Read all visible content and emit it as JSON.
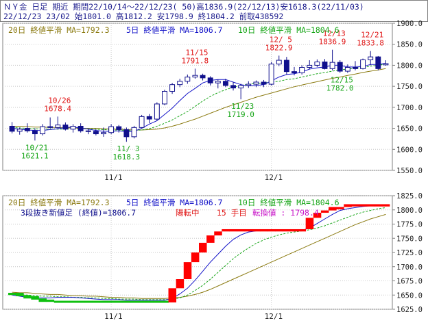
{
  "header": {
    "line1": "ＮＹ金 日足 期近 期間22/10/14～22/12/23( 50)高1836.9(22/12/13)安1618.3(22/11/03)",
    "line2": "22/12/23 23/02 始1801.0 高1812.2 安1798.9 終1804.2 前取438592"
  },
  "colors": {
    "ma20": "#8b7a10",
    "ma5": "#1414c8",
    "ma10": "#16a516",
    "candle_up": "#ffffff",
    "candle_down": "#10108c",
    "annot_high": "#e01414",
    "annot_low": "#16a516",
    "renko_up": "#ff0000",
    "renko_down": "#10c010",
    "grid": "#c8c8c8"
  },
  "chart_data": [
    {
      "type": "candlestick",
      "legend": [
        "20日 終値平滑 MA=1792.3",
        "5日 終値平滑 MA=1806.7",
        "10日 終値平滑 MA=1804.6"
      ],
      "ylim": [
        1550,
        1900
      ],
      "yticks": [
        "1900.0",
        "1850.0",
        "1800.0",
        "1750.0",
        "1700.0",
        "1650.0",
        "1600.0",
        "1550.0"
      ],
      "ytick_values": [
        1900,
        1850,
        1800,
        1750,
        1700,
        1650,
        1600,
        1550
      ],
      "xtick_labels": [
        {
          "label": "11/1",
          "index": 13
        },
        {
          "label": "12/1",
          "index": 34
        }
      ],
      "candles": [
        {
          "o": 1655,
          "h": 1665,
          "l": 1638,
          "c": 1643
        },
        {
          "o": 1643,
          "h": 1652,
          "l": 1635,
          "c": 1648
        },
        {
          "o": 1650,
          "h": 1662,
          "l": 1640,
          "c": 1644
        },
        {
          "o": 1644,
          "h": 1650,
          "l": 1621,
          "c": 1637
        },
        {
          "o": 1637,
          "h": 1660,
          "l": 1633,
          "c": 1654
        },
        {
          "o": 1654,
          "h": 1676,
          "l": 1650,
          "c": 1652
        },
        {
          "o": 1652,
          "h": 1678,
          "l": 1648,
          "c": 1658
        },
        {
          "o": 1658,
          "h": 1664,
          "l": 1645,
          "c": 1648
        },
        {
          "o": 1648,
          "h": 1660,
          "l": 1640,
          "c": 1655
        },
        {
          "o": 1655,
          "h": 1662,
          "l": 1640,
          "c": 1644
        },
        {
          "o": 1644,
          "h": 1650,
          "l": 1636,
          "c": 1643
        },
        {
          "o": 1643,
          "h": 1648,
          "l": 1633,
          "c": 1637
        },
        {
          "o": 1637,
          "h": 1652,
          "l": 1630,
          "c": 1640
        },
        {
          "o": 1640,
          "h": 1660,
          "l": 1636,
          "c": 1654
        },
        {
          "o": 1654,
          "h": 1658,
          "l": 1640,
          "c": 1647
        },
        {
          "o": 1647,
          "h": 1652,
          "l": 1618,
          "c": 1630
        },
        {
          "o": 1630,
          "h": 1656,
          "l": 1626,
          "c": 1652
        },
        {
          "o": 1652,
          "h": 1682,
          "l": 1650,
          "c": 1678
        },
        {
          "o": 1678,
          "h": 1684,
          "l": 1662,
          "c": 1672
        },
        {
          "o": 1672,
          "h": 1712,
          "l": 1668,
          "c": 1708
        },
        {
          "o": 1708,
          "h": 1742,
          "l": 1705,
          "c": 1738
        },
        {
          "o": 1738,
          "h": 1758,
          "l": 1732,
          "c": 1754
        },
        {
          "o": 1754,
          "h": 1768,
          "l": 1748,
          "c": 1762
        },
        {
          "o": 1762,
          "h": 1778,
          "l": 1756,
          "c": 1772
        },
        {
          "o": 1772,
          "h": 1792,
          "l": 1768,
          "c": 1776
        },
        {
          "o": 1776,
          "h": 1780,
          "l": 1764,
          "c": 1770
        },
        {
          "o": 1770,
          "h": 1774,
          "l": 1752,
          "c": 1758
        },
        {
          "o": 1758,
          "h": 1766,
          "l": 1745,
          "c": 1762
        },
        {
          "o": 1762,
          "h": 1768,
          "l": 1748,
          "c": 1752
        },
        {
          "o": 1752,
          "h": 1760,
          "l": 1740,
          "c": 1746
        },
        {
          "o": 1746,
          "h": 1756,
          "l": 1719,
          "c": 1752
        },
        {
          "o": 1752,
          "h": 1762,
          "l": 1746,
          "c": 1755
        },
        {
          "o": 1755,
          "h": 1764,
          "l": 1748,
          "c": 1760
        },
        {
          "o": 1760,
          "h": 1765,
          "l": 1748,
          "c": 1755
        },
        {
          "o": 1755,
          "h": 1808,
          "l": 1752,
          "c": 1803
        },
        {
          "o": 1803,
          "h": 1823,
          "l": 1798,
          "c": 1812
        },
        {
          "o": 1812,
          "h": 1820,
          "l": 1778,
          "c": 1785
        },
        {
          "o": 1785,
          "h": 1796,
          "l": 1776,
          "c": 1782
        },
        {
          "o": 1782,
          "h": 1800,
          "l": 1778,
          "c": 1795
        },
        {
          "o": 1795,
          "h": 1812,
          "l": 1790,
          "c": 1800
        },
        {
          "o": 1800,
          "h": 1814,
          "l": 1796,
          "c": 1808
        },
        {
          "o": 1808,
          "h": 1815,
          "l": 1790,
          "c": 1792
        },
        {
          "o": 1792,
          "h": 1837,
          "l": 1788,
          "c": 1807
        },
        {
          "o": 1807,
          "h": 1812,
          "l": 1782,
          "c": 1786
        },
        {
          "o": 1786,
          "h": 1802,
          "l": 1782,
          "c": 1795
        },
        {
          "o": 1795,
          "h": 1810,
          "l": 1788,
          "c": 1792
        },
        {
          "o": 1792,
          "h": 1816,
          "l": 1790,
          "c": 1813
        },
        {
          "o": 1813,
          "h": 1834,
          "l": 1800,
          "c": 1820
        },
        {
          "o": 1820,
          "h": 1822,
          "l": 1788,
          "c": 1792
        },
        {
          "o": 1801,
          "h": 1812,
          "l": 1799,
          "c": 1804
        }
      ],
      "ma5": [
        1650,
        1648,
        1646,
        1645,
        1645,
        1647,
        1649,
        1652,
        1653,
        1651,
        1648,
        1645,
        1643,
        1643,
        1644,
        1642,
        1643,
        1650,
        1660,
        1668,
        1683,
        1698,
        1716,
        1733,
        1745,
        1758,
        1764,
        1766,
        1766,
        1760,
        1754,
        1751,
        1752,
        1754,
        1763,
        1772,
        1778,
        1780,
        1784,
        1791,
        1794,
        1796,
        1800,
        1800,
        1796,
        1796,
        1797,
        1802,
        1802,
        1805
      ],
      "ma10": [
        1652,
        1651,
        1650,
        1649,
        1648,
        1648,
        1648,
        1648,
        1649,
        1649,
        1649,
        1648,
        1647,
        1646,
        1646,
        1645,
        1645,
        1646,
        1649,
        1655,
        1662,
        1670,
        1680,
        1690,
        1702,
        1715,
        1726,
        1735,
        1742,
        1748,
        1752,
        1755,
        1757,
        1758,
        1760,
        1762,
        1766,
        1768,
        1772,
        1776,
        1780,
        1783,
        1786,
        1789,
        1791,
        1793,
        1795,
        1798,
        1800,
        1803
      ],
      "ma20": [
        1655,
        1655,
        1654,
        1653,
        1653,
        1652,
        1652,
        1651,
        1651,
        1650,
        1650,
        1650,
        1649,
        1648,
        1648,
        1647,
        1646,
        1646,
        1647,
        1648,
        1651,
        1655,
        1660,
        1666,
        1672,
        1679,
        1686,
        1693,
        1700,
        1706,
        1712,
        1718,
        1724,
        1729,
        1734,
        1739,
        1744,
        1749,
        1753,
        1757,
        1761,
        1765,
        1769,
        1772,
        1776,
        1779,
        1783,
        1786,
        1789,
        1792
      ],
      "annotations": [
        {
          "type": "high",
          "date": "10/26",
          "value": "1678.4",
          "index": 6,
          "price": 1678
        },
        {
          "type": "low",
          "date": "10/21",
          "value": "1621.1",
          "index": 3,
          "price": 1621
        },
        {
          "type": "low",
          "date": "11/ 3",
          "value": "1618.3",
          "index": 15,
          "price": 1618
        },
        {
          "type": "high",
          "date": "11/15",
          "value": "1791.8",
          "index": 24,
          "price": 1792
        },
        {
          "type": "low",
          "date": "11/23",
          "value": "1719.0",
          "index": 30,
          "price": 1719
        },
        {
          "type": "high",
          "date": "12/ 5",
          "value": "1822.9",
          "index": 35,
          "price": 1823
        },
        {
          "type": "high",
          "date": "12/13",
          "value": "1836.9",
          "index": 42,
          "price": 1837
        },
        {
          "type": "low",
          "date": "12/15",
          "value": "1782.0",
          "index": 43,
          "price": 1782
        },
        {
          "type": "high",
          "date": "12/21",
          "value": "1833.8",
          "index": 47,
          "price": 1834
        }
      ]
    },
    {
      "type": "three-line-break",
      "legend": [
        "20日 終値平滑 MA=1792.3",
        "5日 終値平滑 MA=1806.7",
        "10日 終値平滑 MA=1804.6"
      ],
      "subtitle_parts": [
        "3段抜き新値足 (終値)=1806.7",
        "陽転中",
        "15 手目",
        "転換値 : 1798.4"
      ],
      "ylim": [
        1625,
        1825
      ],
      "yticks": [
        "1825.0",
        "1800.0",
        "1775.0",
        "1750.0",
        "1725.0",
        "1700.0",
        "1675.0",
        "1650.0",
        "1625.0"
      ],
      "ytick_values": [
        1825,
        1800,
        1775,
        1750,
        1725,
        1700,
        1675,
        1650,
        1625
      ],
      "xtick_labels": [
        {
          "label": "11/1",
          "index": 13
        },
        {
          "label": "12/1",
          "index": 34
        }
      ],
      "bricks": [
        {
          "from": 1654,
          "to": 1650,
          "dir": "down"
        },
        {
          "from": 1654,
          "to": 1648,
          "dir": "down"
        },
        {
          "from": 1650,
          "to": 1644,
          "dir": "down"
        },
        {
          "from": 1648,
          "to": 1642,
          "dir": "down"
        },
        {
          "from": 1644,
          "to": 1638,
          "dir": "down"
        },
        {
          "from": 1642,
          "to": 1638,
          "dir": "down"
        },
        {
          "from": 1640,
          "to": 1637,
          "dir": "down"
        },
        {
          "from": 1640,
          "to": 1637,
          "dir": "down"
        },
        {
          "from": 1640,
          "to": 1637,
          "dir": "down"
        },
        {
          "from": 1640,
          "to": 1637,
          "dir": "down"
        },
        {
          "from": 1640,
          "to": 1637,
          "dir": "down"
        },
        {
          "from": 1640,
          "to": 1637,
          "dir": "down"
        },
        {
          "from": 1640,
          "to": 1637,
          "dir": "down"
        },
        {
          "from": 1640,
          "to": 1637,
          "dir": "down"
        },
        {
          "from": 1640,
          "to": 1637,
          "dir": "down"
        },
        {
          "from": 1640,
          "to": 1637,
          "dir": "down"
        },
        {
          "from": 1640,
          "to": 1637,
          "dir": "down"
        },
        {
          "from": 1640,
          "to": 1637,
          "dir": "down"
        },
        {
          "from": 1640,
          "to": 1637,
          "dir": "down"
        },
        {
          "from": 1640,
          "to": 1637,
          "dir": "down"
        },
        {
          "from": 1640,
          "to": 1637,
          "dir": "down"
        },
        {
          "from": 1637,
          "to": 1662,
          "dir": "up"
        },
        {
          "from": 1662,
          "to": 1678,
          "dir": "up"
        },
        {
          "from": 1678,
          "to": 1708,
          "dir": "up"
        },
        {
          "from": 1708,
          "to": 1725,
          "dir": "up"
        },
        {
          "from": 1725,
          "to": 1742,
          "dir": "up"
        },
        {
          "from": 1742,
          "to": 1755,
          "dir": "up"
        },
        {
          "from": 1755,
          "to": 1762,
          "dir": "up"
        },
        {
          "from": 1762,
          "to": 1766,
          "dir": "up"
        },
        {
          "from": 1762,
          "to": 1766,
          "dir": "up"
        },
        {
          "from": 1762,
          "to": 1766,
          "dir": "up"
        },
        {
          "from": 1762,
          "to": 1766,
          "dir": "up"
        },
        {
          "from": 1762,
          "to": 1766,
          "dir": "up"
        },
        {
          "from": 1762,
          "to": 1766,
          "dir": "up"
        },
        {
          "from": 1762,
          "to": 1766,
          "dir": "up"
        },
        {
          "from": 1762,
          "to": 1766,
          "dir": "up"
        },
        {
          "from": 1762,
          "to": 1766,
          "dir": "up"
        },
        {
          "from": 1762,
          "to": 1766,
          "dir": "up"
        },
        {
          "from": 1762,
          "to": 1766,
          "dir": "up"
        },
        {
          "from": 1766,
          "to": 1786,
          "dir": "up"
        },
        {
          "from": 1786,
          "to": 1795,
          "dir": "up"
        },
        {
          "from": 1795,
          "to": 1799,
          "dir": "up"
        },
        {
          "from": 1799,
          "to": 1805,
          "dir": "up"
        },
        {
          "from": 1801,
          "to": 1805,
          "dir": "up"
        },
        {
          "from": 1805,
          "to": 1810,
          "dir": "up"
        },
        {
          "from": 1806,
          "to": 1810,
          "dir": "up"
        },
        {
          "from": 1806,
          "to": 1810,
          "dir": "up"
        },
        {
          "from": 1806,
          "to": 1810,
          "dir": "up"
        },
        {
          "from": 1806,
          "to": 1810,
          "dir": "up"
        },
        {
          "from": 1806,
          "to": 1810,
          "dir": "up"
        }
      ],
      "ma5": [
        1650,
        1648,
        1646,
        1645,
        1645,
        1645,
        1646,
        1646,
        1646,
        1645,
        1644,
        1643,
        1642,
        1642,
        1642,
        1641,
        1641,
        1641,
        1641,
        1641,
        1641,
        1644,
        1652,
        1662,
        1676,
        1692,
        1708,
        1722,
        1736,
        1748,
        1756,
        1761,
        1763,
        1764,
        1764,
        1764,
        1764,
        1764,
        1764,
        1768,
        1776,
        1784,
        1792,
        1799,
        1802,
        1804,
        1806,
        1807,
        1807,
        1807
      ],
      "ma10": [
        1652,
        1651,
        1650,
        1649,
        1648,
        1648,
        1647,
        1647,
        1646,
        1646,
        1645,
        1645,
        1644,
        1644,
        1643,
        1643,
        1643,
        1642,
        1642,
        1642,
        1642,
        1643,
        1645,
        1650,
        1658,
        1667,
        1678,
        1690,
        1702,
        1714,
        1724,
        1733,
        1741,
        1747,
        1752,
        1756,
        1759,
        1761,
        1763,
        1765,
        1768,
        1772,
        1777,
        1782,
        1787,
        1792,
        1796,
        1799,
        1802,
        1804
      ],
      "ma20": [
        1655,
        1654,
        1654,
        1653,
        1652,
        1651,
        1651,
        1650,
        1649,
        1649,
        1648,
        1648,
        1647,
        1646,
        1646,
        1645,
        1645,
        1644,
        1644,
        1644,
        1644,
        1645,
        1646,
        1648,
        1651,
        1655,
        1660,
        1666,
        1672,
        1678,
        1684,
        1690,
        1696,
        1702,
        1708,
        1714,
        1720,
        1726,
        1732,
        1738,
        1744,
        1750,
        1756,
        1762,
        1768,
        1774,
        1779,
        1784,
        1788,
        1792
      ]
    }
  ]
}
